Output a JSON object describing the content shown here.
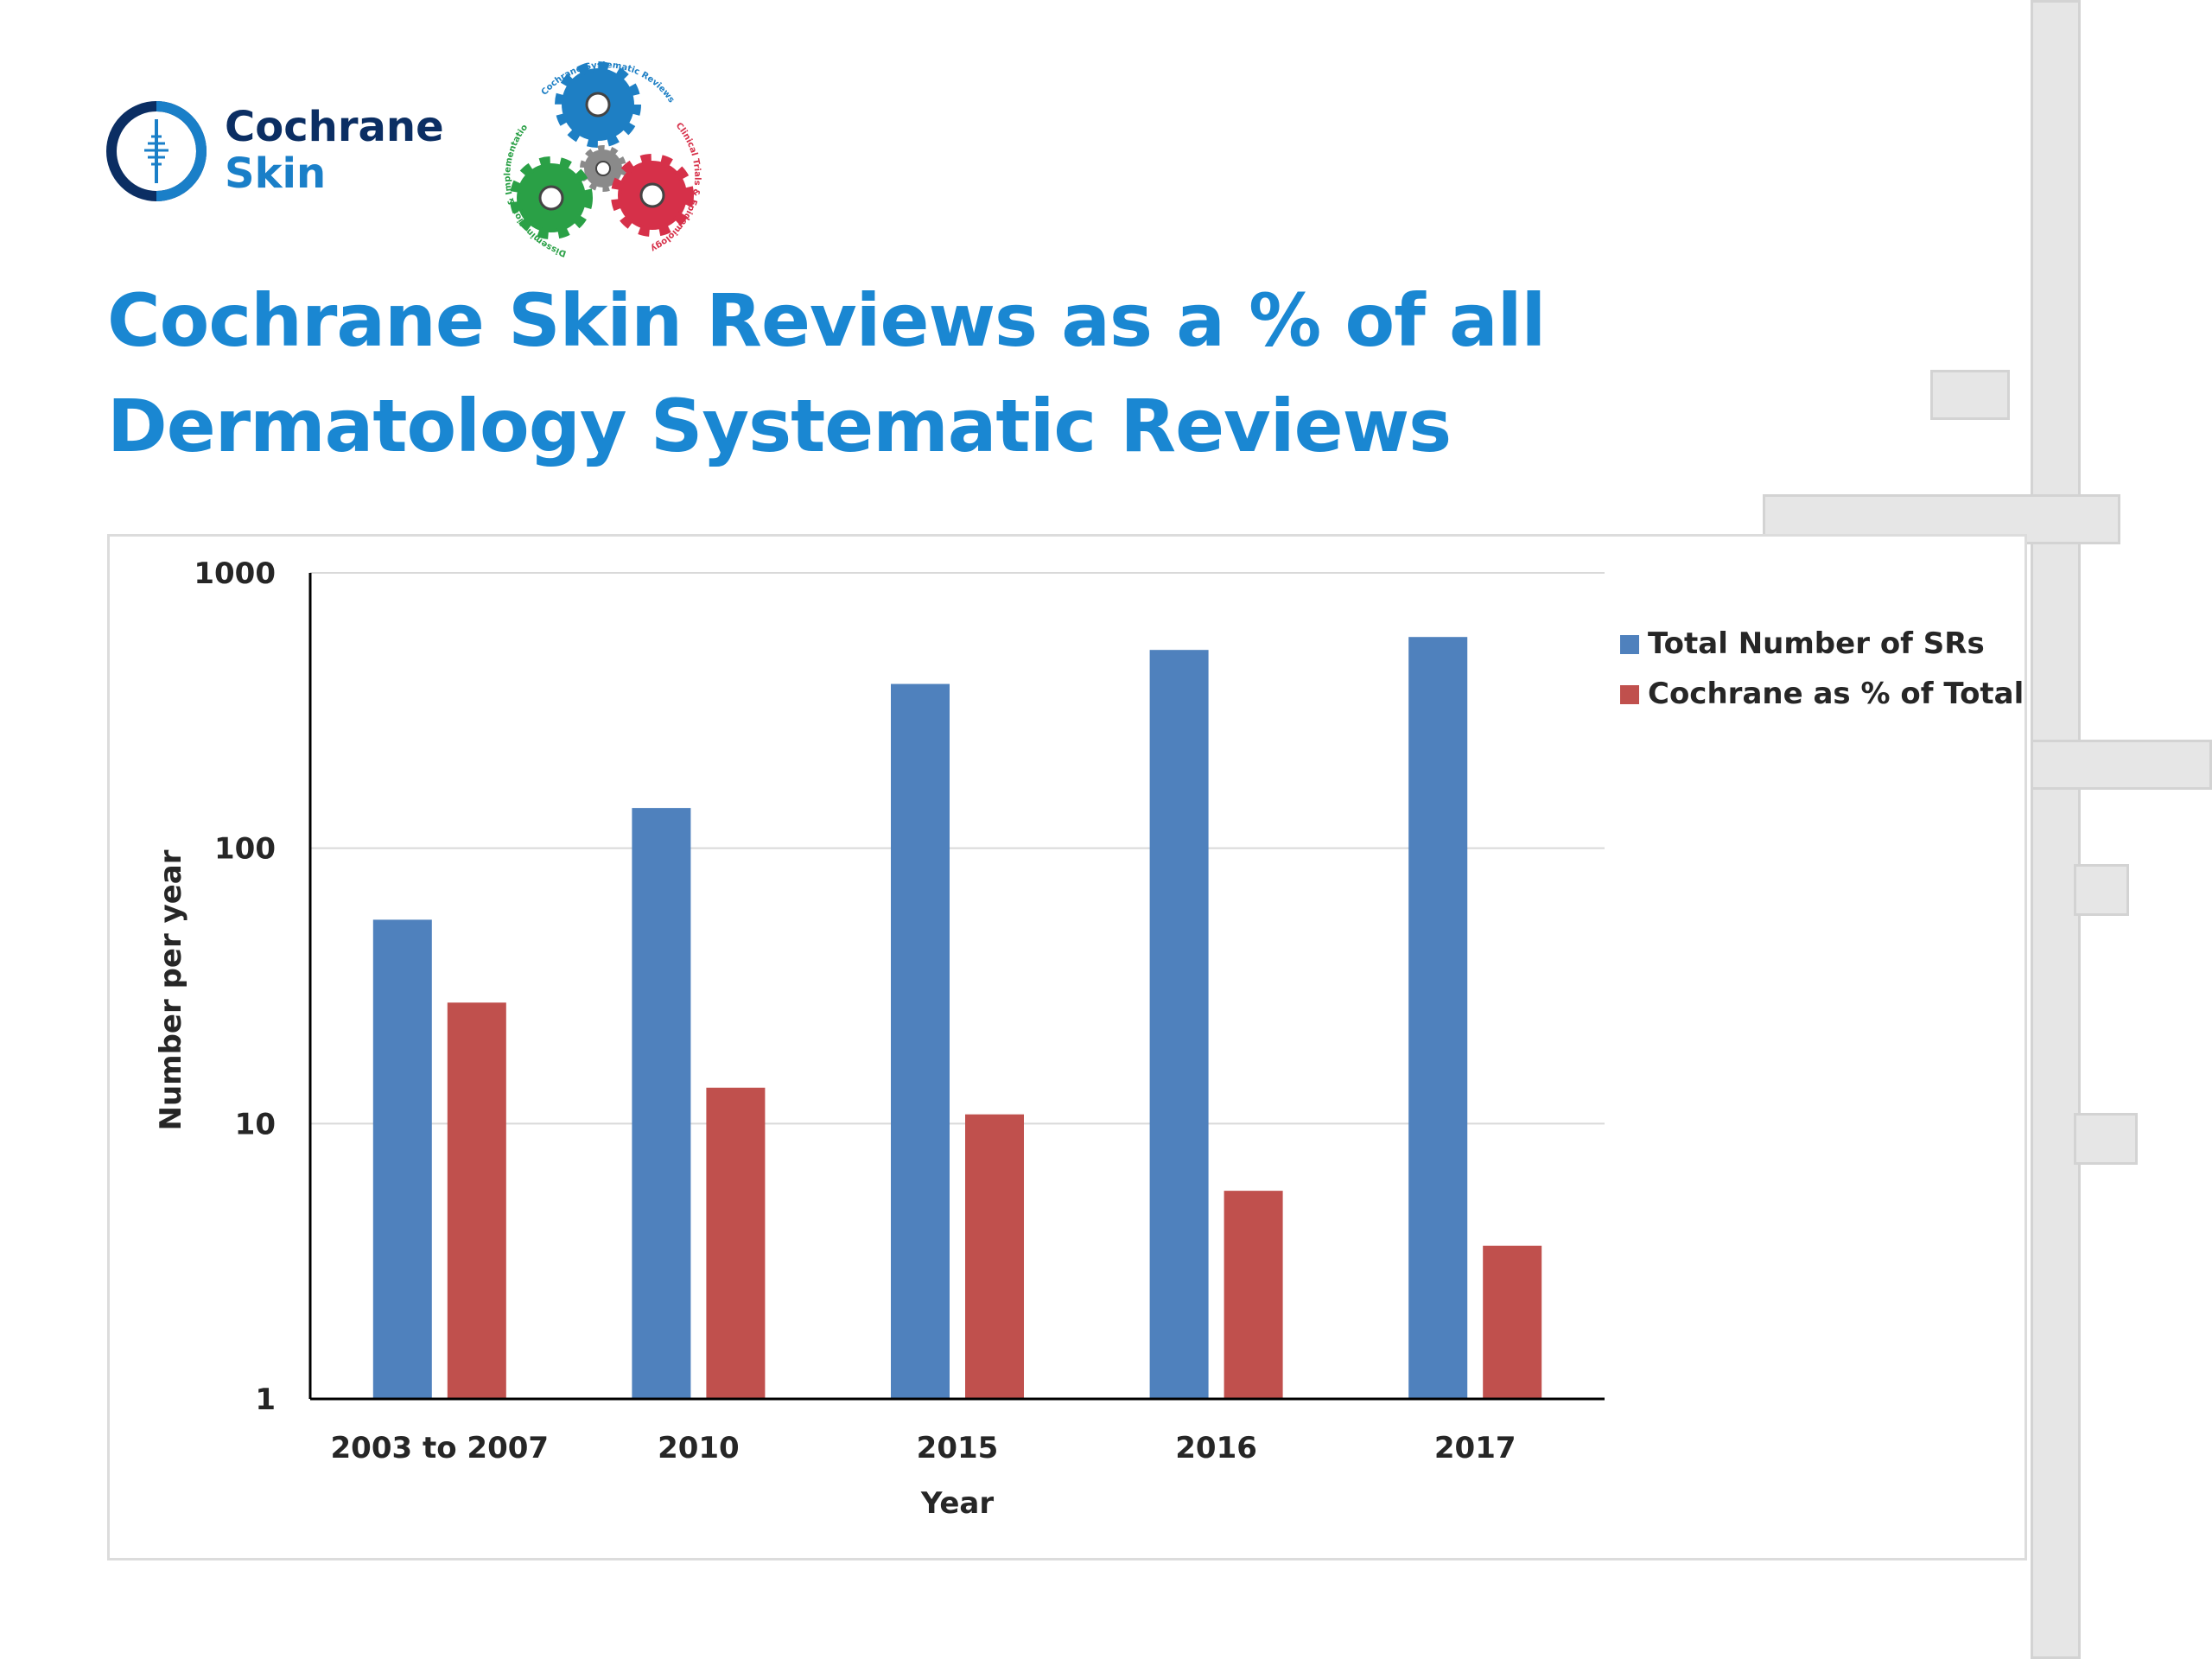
{
  "logo": {
    "line1": "Cochrane",
    "line2": "Skin",
    "colors": {
      "dark": "#0b2e63",
      "light": "#1a7fc8"
    }
  },
  "gears_logo": {
    "arc_texts": [
      "Cochrane Systematic Reviews",
      "Clinical Trials & Epidemiology",
      "Dissemination & Implementation"
    ],
    "colors": [
      "#1e7fc4",
      "#d63049",
      "#2aa046",
      "#8a8a8a"
    ]
  },
  "title": "Cochrane Skin Reviews as a % of all Dermatology Systematic Reviews",
  "chart_data": {
    "type": "bar",
    "scale": "log",
    "categories": [
      "2003 to 2007",
      "2010",
      "2015",
      "2016",
      "2017"
    ],
    "series": [
      {
        "name": "Total Number of SRs",
        "color": "#4f81bd",
        "values": [
          55,
          140,
          395,
          525,
          585
        ]
      },
      {
        "name": "Cochrane as % of Total",
        "color": "#c0504d",
        "values": [
          27.5,
          13.5,
          10.8,
          5.7,
          3.6
        ]
      }
    ],
    "yticks": [
      "1",
      "10",
      "100",
      "1000"
    ],
    "ylim": [
      1,
      1000
    ],
    "xlabel": "Year",
    "ylabel": "Number per year",
    "grid": true,
    "legend": "right"
  }
}
